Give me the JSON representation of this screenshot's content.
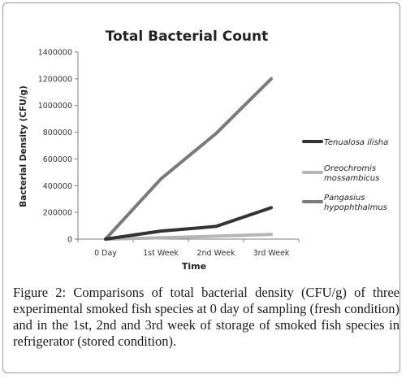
{
  "chart_data": {
    "type": "line",
    "title": "Total Bacterial Count",
    "xlabel": "Time",
    "ylabel": "Bacterial Density (CFU/g)",
    "categories": [
      "0 Day",
      "1st Week",
      "2nd Week",
      "3rd Week"
    ],
    "ylim": [
      0,
      1400000
    ],
    "yticks": [
      0,
      200000,
      400000,
      600000,
      800000,
      1000000,
      1200000,
      1400000
    ],
    "grid": false,
    "legend": "right",
    "series": [
      {
        "name": "Tenualosa ilisha",
        "values": [
          0,
          60000,
          95000,
          235000
        ],
        "color": "#333333"
      },
      {
        "name": "Oreochromis mossambicus",
        "values": [
          0,
          10000,
          22000,
          35000
        ],
        "color": "#b5b5b5"
      },
      {
        "name": "Pangasius hypophthalmus",
        "values": [
          0,
          450000,
          790000,
          1200000
        ],
        "color": "#7a7a7a"
      }
    ]
  },
  "caption": {
    "label": "Figure 2:",
    "text": "Comparisons of total bacterial density (CFU/g) of three experimental smoked fish species at 0 day of sampling (fresh condition) and in the 1st, 2nd and 3rd week of storage of smoked fish species in refrigerator (stored condition)."
  }
}
